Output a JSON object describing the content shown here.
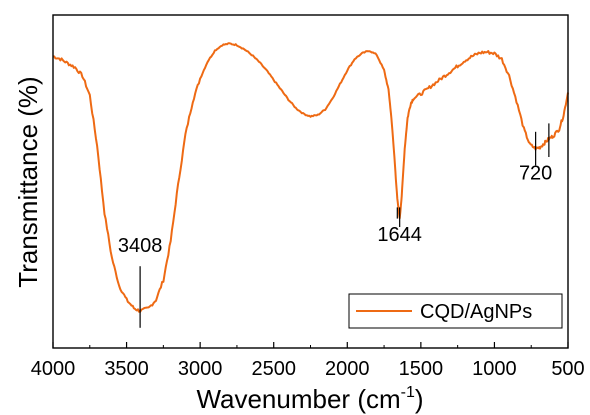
{
  "chart_data": {
    "type": "line",
    "title": "",
    "xlabel": "Wavenumber (cm",
    "xlabel_sup": "-1",
    "xlabel_close": ")",
    "ylabel": "Transmittance (%)",
    "xlim": [
      4000,
      500
    ],
    "x_reversed": true,
    "y_ticks_shown": false,
    "grid": false,
    "legend_position": "bottom-right",
    "x_ticks": [
      4000,
      3500,
      3000,
      2500,
      2000,
      1500,
      1000,
      500
    ],
    "x_tick_labels": [
      "4000",
      "3500",
      "3000",
      "2500",
      "2000",
      "1500",
      "1000",
      "500"
    ],
    "ylim": [
      0,
      100
    ],
    "series": [
      {
        "name": "CQD/AgNPs",
        "color": "#ee6a14",
        "x": [
          4000,
          3950,
          3900,
          3850,
          3800,
          3750,
          3700,
          3650,
          3600,
          3550,
          3500,
          3450,
          3408,
          3350,
          3300,
          3250,
          3200,
          3150,
          3100,
          3050,
          3000,
          2950,
          2900,
          2850,
          2800,
          2750,
          2700,
          2650,
          2600,
          2550,
          2500,
          2450,
          2400,
          2350,
          2300,
          2250,
          2200,
          2150,
          2100,
          2050,
          2000,
          1950,
          1900,
          1850,
          1800,
          1750,
          1720,
          1700,
          1680,
          1660,
          1644,
          1630,
          1610,
          1590,
          1570,
          1550,
          1500,
          1450,
          1400,
          1350,
          1300,
          1250,
          1200,
          1150,
          1100,
          1050,
          1000,
          950,
          900,
          850,
          800,
          760,
          720,
          690,
          660,
          630,
          600,
          560,
          530,
          500
        ],
        "y": [
          96,
          95,
          93.5,
          92,
          89,
          82,
          64,
          40,
          24,
          14,
          9,
          6,
          5,
          6,
          9,
          16,
          30,
          50,
          68,
          80,
          88,
          94,
          98,
          100,
          100.5,
          100,
          98.5,
          96.5,
          94,
          91,
          87.5,
          84,
          80.5,
          77.5,
          75.5,
          74.5,
          75,
          77,
          81,
          86,
          91,
          95,
          97,
          98,
          96.5,
          91,
          84,
          74,
          60,
          45,
          38,
          46,
          63,
          74,
          79,
          81,
          82.5,
          84.5,
          86.5,
          88.5,
          90.5,
          92.5,
          94.5,
          96,
          97.2,
          97.5,
          97,
          95,
          89,
          80,
          70,
          64.5,
          63,
          63.5,
          65,
          66.5,
          67.5,
          70,
          75,
          83
        ]
      }
    ],
    "annotations": [
      {
        "label": "3408",
        "x": 3408,
        "y_top": 21,
        "y_bottom": -1,
        "label_y": 26
      },
      {
        "label": "1644",
        "x": 1644,
        "y_top": 42,
        "y_bottom": 35,
        "label_y": 30
      },
      {
        "label": "720",
        "x": 720,
        "y_top": 69,
        "y_bottom": 57,
        "label_y": 52
      }
    ],
    "extra_markers": [
      {
        "x": 1660,
        "y_top": 42,
        "y_bottom": 38
      },
      {
        "x": 630,
        "y_top": 72,
        "y_bottom": 60
      }
    ]
  }
}
